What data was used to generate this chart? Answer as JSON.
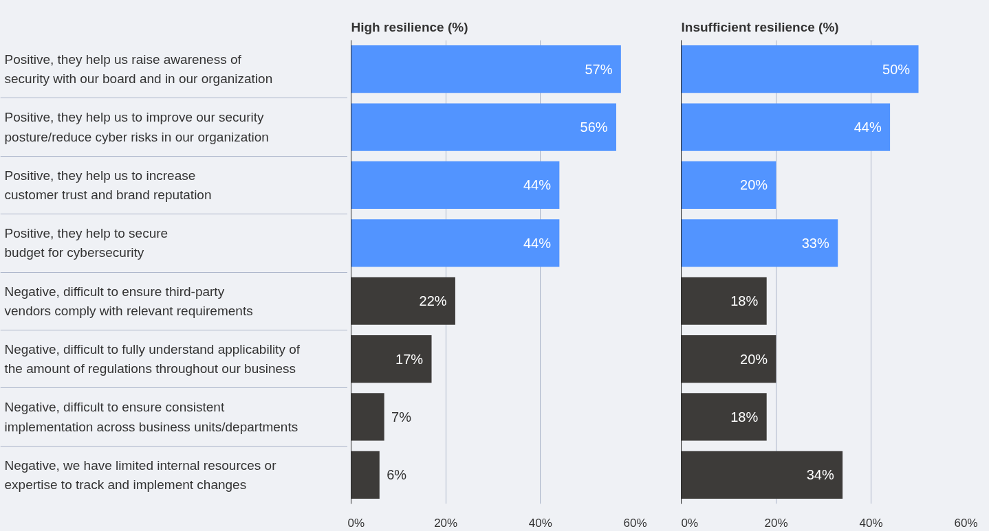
{
  "chart_data": [
    {
      "type": "bar",
      "orientation": "horizontal",
      "title": "High resilience (%)",
      "categories": [
        "Positive, they help us raise awareness of\nsecurity with our board and in our organization",
        "Positive, they help us to improve our security\nposture/reduce cyber risks in our organization",
        "Positive, they help us to increase\ncustomer trust and brand reputation",
        "Positive, they help to secure\nbudget for cybersecurity",
        "Negative, difficult to ensure third-party\nvendors comply with relevant requirements",
        "Negative, difficult to fully understand applicability of\nthe amount of regulations throughout our business",
        "Negative, difficult to ensure consistent\nimplementation across business units/departments",
        "Negative, we have limited internal resources or\nexpertise to track and implement changes"
      ],
      "values": [
        57,
        56,
        44,
        44,
        22,
        17,
        7,
        6
      ],
      "value_labels": [
        "57%",
        "56%",
        "44%",
        "44%",
        "22%",
        "17%",
        "7%",
        "6%"
      ],
      "colors": [
        "#5294ff",
        "#5294ff",
        "#5294ff",
        "#5294ff",
        "#3d3b39",
        "#3d3b39",
        "#3d3b39",
        "#3d3b39"
      ],
      "xlim": [
        0,
        60
      ],
      "xticks": [
        {
          "value": 0,
          "label": "0%"
        },
        {
          "value": 20,
          "label": "20%"
        },
        {
          "value": 40,
          "label": "40%"
        },
        {
          "value": 60,
          "label": "60%"
        }
      ],
      "grid": "x",
      "legend": false
    },
    {
      "type": "bar",
      "orientation": "horizontal",
      "title": "Insufficient resilience (%)",
      "categories": [
        null,
        null,
        null,
        null,
        null,
        null,
        null,
        null
      ],
      "values": [
        50,
        44,
        20,
        33,
        18,
        20,
        18,
        34
      ],
      "value_labels": [
        "50%",
        "44%",
        "20%",
        "33%",
        "18%",
        "20%",
        "18%",
        "34%"
      ],
      "colors": [
        "#5294ff",
        "#5294ff",
        "#5294ff",
        "#5294ff",
        "#3d3b39",
        "#3d3b39",
        "#3d3b39",
        "#3d3b39"
      ],
      "xlim": [
        0,
        60
      ],
      "xticks": [
        {
          "value": 0,
          "label": "0%"
        },
        {
          "value": 20,
          "label": "20%"
        },
        {
          "value": 40,
          "label": "40%"
        },
        {
          "value": 60,
          "label": "60%"
        }
      ],
      "grid": "x",
      "legend": false,
      "tick_labels": "x"
    }
  ]
}
